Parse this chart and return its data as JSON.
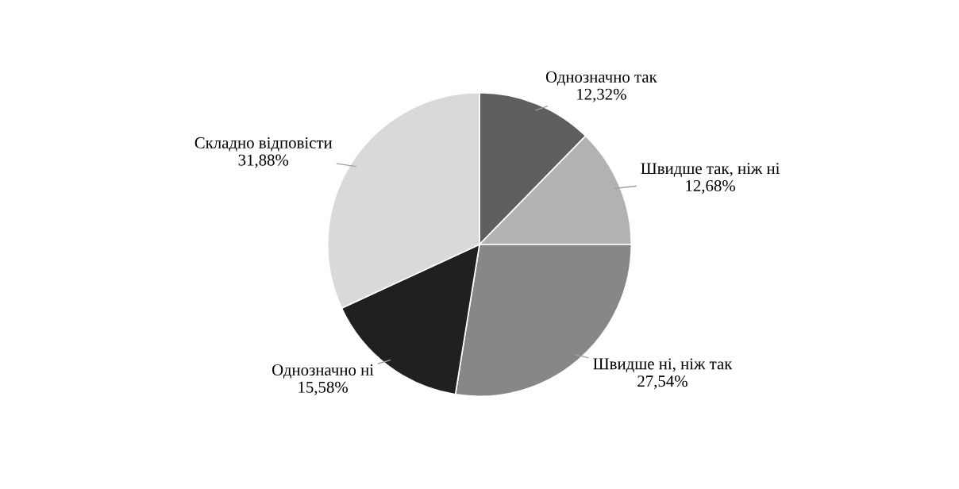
{
  "chart_data": {
    "type": "pie",
    "categories": [
      "Однозначно так",
      "Швидше так, ніж ні",
      "Швидше ні, ніж так",
      "Однозначно ні",
      "Складно відповісти"
    ],
    "values": [
      12.32,
      12.68,
      27.54,
      15.58,
      31.88
    ],
    "value_labels": [
      "12,32%",
      "12,68%",
      "27,54%",
      "15,58%",
      "31,88%"
    ],
    "colors": [
      "#5f5f5f",
      "#b2b2b2",
      "#878787",
      "#202020",
      "#d9d9d9"
    ]
  }
}
